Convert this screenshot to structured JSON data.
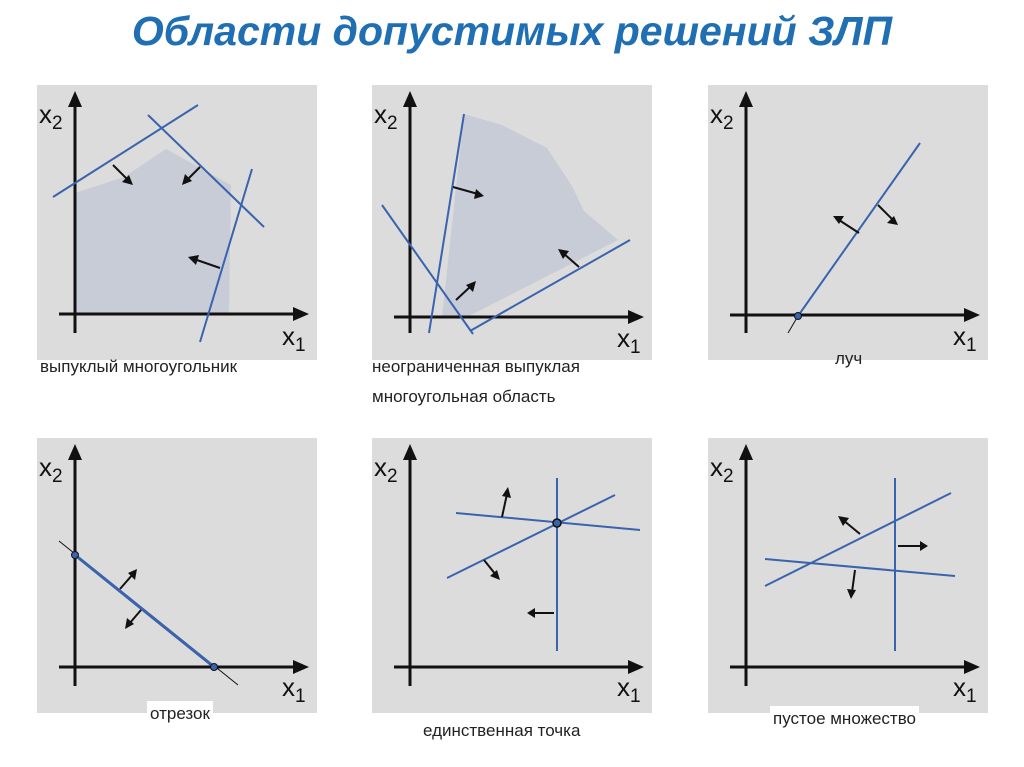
{
  "title": "Области допустимых решений ЗЛП",
  "axes": {
    "y_label": "x",
    "y_sub": "2",
    "x_label": "x",
    "x_sub": "1"
  },
  "colors": {
    "line": "#3a63ae",
    "region": "#c8ccd6",
    "panel": "#dcdcdc",
    "arrow": "#111111",
    "title": "#1f6fb2"
  },
  "panels": [
    {
      "caption": "выпуклый многоугольник"
    },
    {
      "caption": "неограниченная выпуклая",
      "caption_2": "многоугольная область"
    },
    {
      "caption": "луч"
    },
    {
      "caption": "отрезок"
    },
    {
      "caption": "единственная точка"
    },
    {
      "caption": "пустое множество"
    }
  ]
}
